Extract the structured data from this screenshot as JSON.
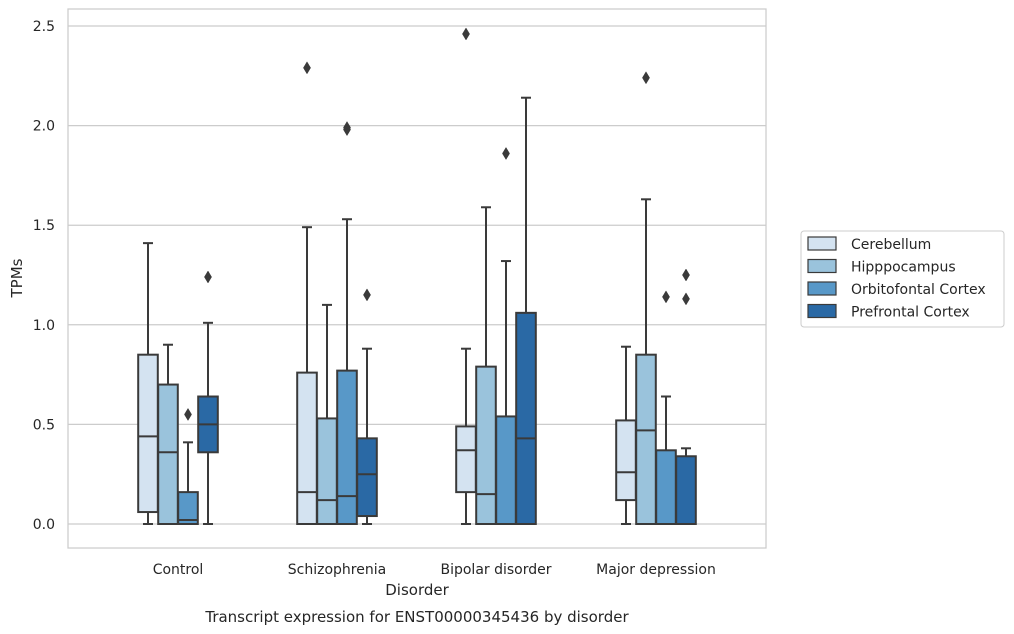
{
  "chart_data": {
    "type": "boxplot",
    "title": "",
    "caption": "Transcript expression for ENST00000345436 by disorder",
    "xlabel": "Disorder",
    "ylabel": "TPMs",
    "ylim": [
      -0.12,
      2.6
    ],
    "yticks": [
      "0.0",
      "0.5",
      "1.0",
      "1.5",
      "2.0",
      "2.5"
    ],
    "categories": [
      "Control",
      "Schizophrenia",
      "Bipolar disorder",
      "Major depression"
    ],
    "grid": "horizontal",
    "legend_position": "right",
    "series": [
      {
        "name": "Cerebellum",
        "color": "#d4e3f1",
        "boxes": [
          {
            "whislo": 0.0,
            "q1": 0.06,
            "med": 0.44,
            "q3": 0.85,
            "whishi": 1.41,
            "fliers": []
          },
          {
            "whislo": 0.0,
            "q1": 0.0,
            "med": 0.16,
            "q3": 0.76,
            "whishi": 1.49,
            "fliers": [
              2.29
            ]
          },
          {
            "whislo": 0.0,
            "q1": 0.16,
            "med": 0.37,
            "q3": 0.49,
            "whishi": 0.88,
            "fliers": [
              2.46
            ]
          },
          {
            "whislo": 0.0,
            "q1": 0.12,
            "med": 0.26,
            "q3": 0.52,
            "whishi": 0.89,
            "fliers": []
          }
        ]
      },
      {
        "name": "Hipppocampus",
        "color": "#9ac3dc",
        "boxes": [
          {
            "whislo": 0.0,
            "q1": 0.0,
            "med": 0.36,
            "q3": 0.7,
            "whishi": 0.9,
            "fliers": []
          },
          {
            "whislo": 0.0,
            "q1": 0.0,
            "med": 0.12,
            "q3": 0.53,
            "whishi": 1.1,
            "fliers": []
          },
          {
            "whislo": 0.0,
            "q1": 0.0,
            "med": 0.15,
            "q3": 0.79,
            "whishi": 1.59,
            "fliers": []
          },
          {
            "whislo": 0.0,
            "q1": 0.0,
            "med": 0.47,
            "q3": 0.85,
            "whishi": 1.63,
            "fliers": [
              2.24
            ]
          }
        ]
      },
      {
        "name": "Orbitofontal Cortex",
        "color": "#5898c8",
        "boxes": [
          {
            "whislo": 0.0,
            "q1": 0.0,
            "med": 0.02,
            "q3": 0.16,
            "whishi": 0.41,
            "fliers": [
              0.55
            ]
          },
          {
            "whislo": 0.0,
            "q1": 0.0,
            "med": 0.14,
            "q3": 0.77,
            "whishi": 1.53,
            "fliers": [
              1.98,
              1.99
            ]
          },
          {
            "whislo": 0.0,
            "q1": 0.0,
            "med": 0.0,
            "q3": 0.54,
            "whishi": 1.32,
            "fliers": [
              1.86
            ]
          },
          {
            "whislo": 0.0,
            "q1": 0.0,
            "med": 0.0,
            "q3": 0.37,
            "whishi": 0.64,
            "fliers": [
              1.14
            ]
          }
        ]
      },
      {
        "name": "Prefrontal Cortex",
        "color": "#2a69a5",
        "boxes": [
          {
            "whislo": 0.0,
            "q1": 0.36,
            "med": 0.5,
            "q3": 0.64,
            "whishi": 1.01,
            "fliers": [
              1.24
            ]
          },
          {
            "whislo": 0.0,
            "q1": 0.04,
            "med": 0.25,
            "q3": 0.43,
            "whishi": 0.88,
            "fliers": [
              1.15
            ]
          },
          {
            "whislo": 0.0,
            "q1": 0.0,
            "med": 0.43,
            "q3": 1.06,
            "whishi": 2.14,
            "fliers": []
          },
          {
            "whislo": 0.0,
            "q1": 0.0,
            "med": 0.0,
            "q3": 0.34,
            "whishi": 0.38,
            "fliers": [
              1.13,
              1.25
            ]
          }
        ]
      }
    ]
  }
}
